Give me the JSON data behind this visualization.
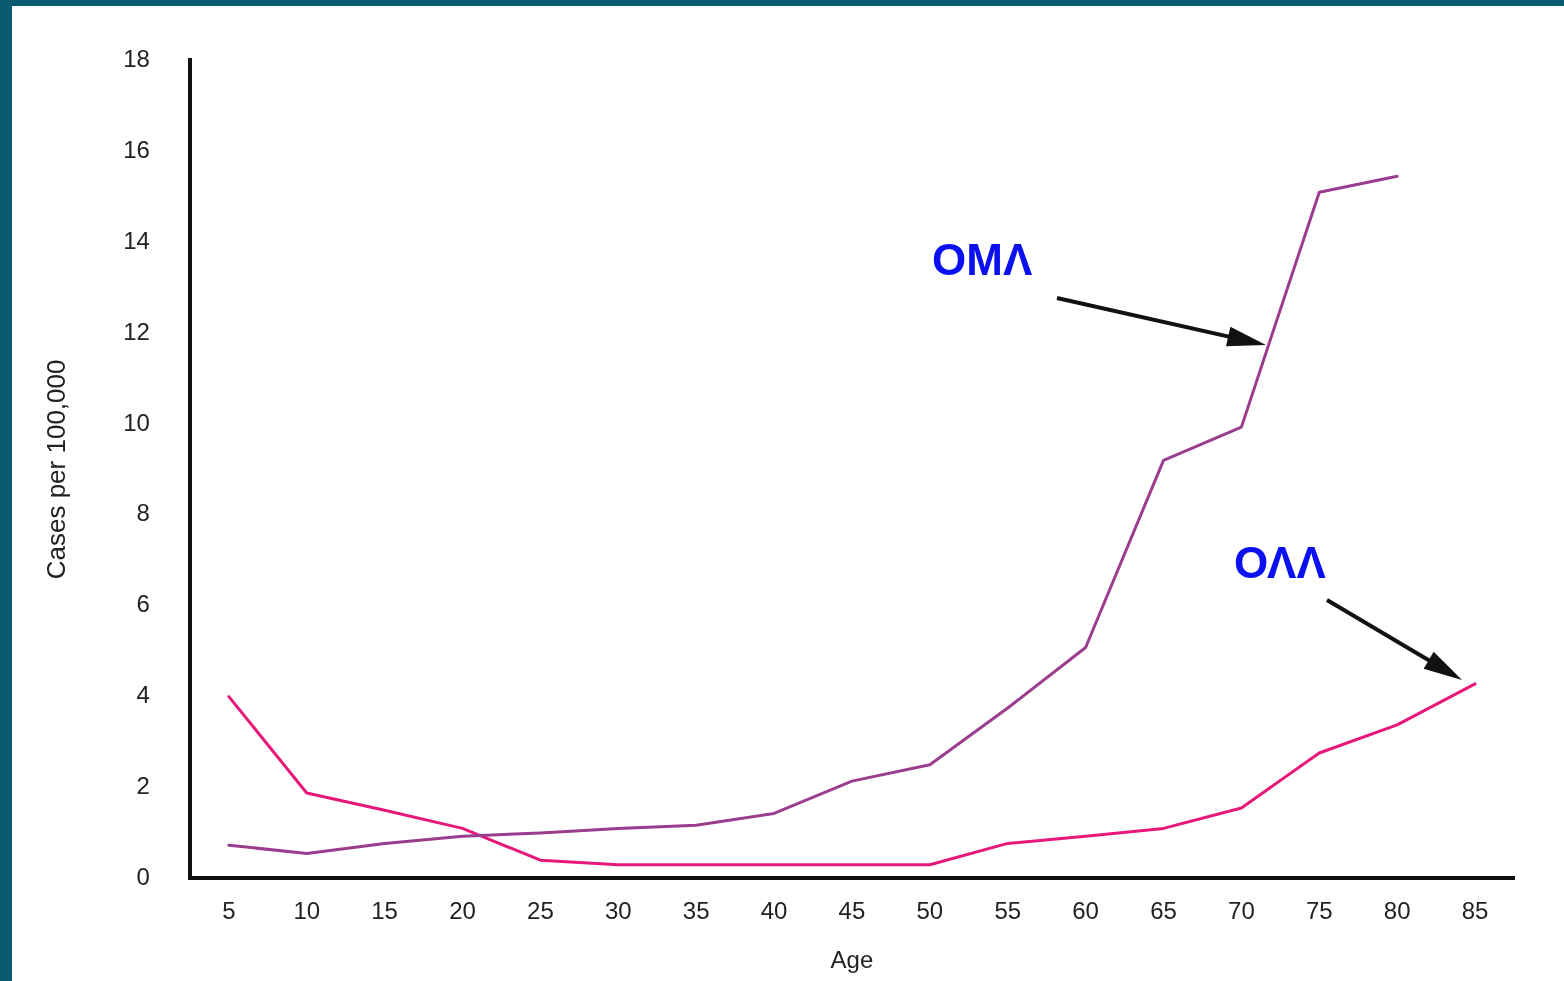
{
  "chart_data": {
    "type": "line",
    "xlabel": "Age",
    "ylabel": "Cases per 100,000",
    "categories": [
      "5",
      "10",
      "15",
      "20",
      "25",
      "30",
      "35",
      "40",
      "45",
      "50",
      "55",
      "60",
      "65",
      "70",
      "75",
      "80",
      "85"
    ],
    "series": [
      {
        "color": "#9b3d8f",
        "values": [
          0.73,
          0.55,
          0.77,
          0.93,
          1.0,
          1.1,
          1.17,
          1.43,
          2.14,
          2.5,
          3.75,
          5.08,
          9.2,
          9.93,
          15.1,
          15.45,
          null
        ]
      },
      {
        "color": "#e8177a",
        "values": [
          4.0,
          1.88,
          1.5,
          1.1,
          0.4,
          0.3,
          0.3,
          0.3,
          0.3,
          0.3,
          0.77,
          0.93,
          1.1,
          1.55,
          2.76,
          3.38,
          4.28
        ]
      }
    ],
    "ylim": [
      0,
      18
    ],
    "yticks": [
      0,
      2,
      4,
      6,
      8,
      10,
      12,
      14,
      16,
      18
    ],
    "grid": false,
    "legend": false,
    "marker": "none",
    "line_style": "solid",
    "annotations": [
      "ΟΜΛ",
      "ΟΛΛ"
    ]
  }
}
